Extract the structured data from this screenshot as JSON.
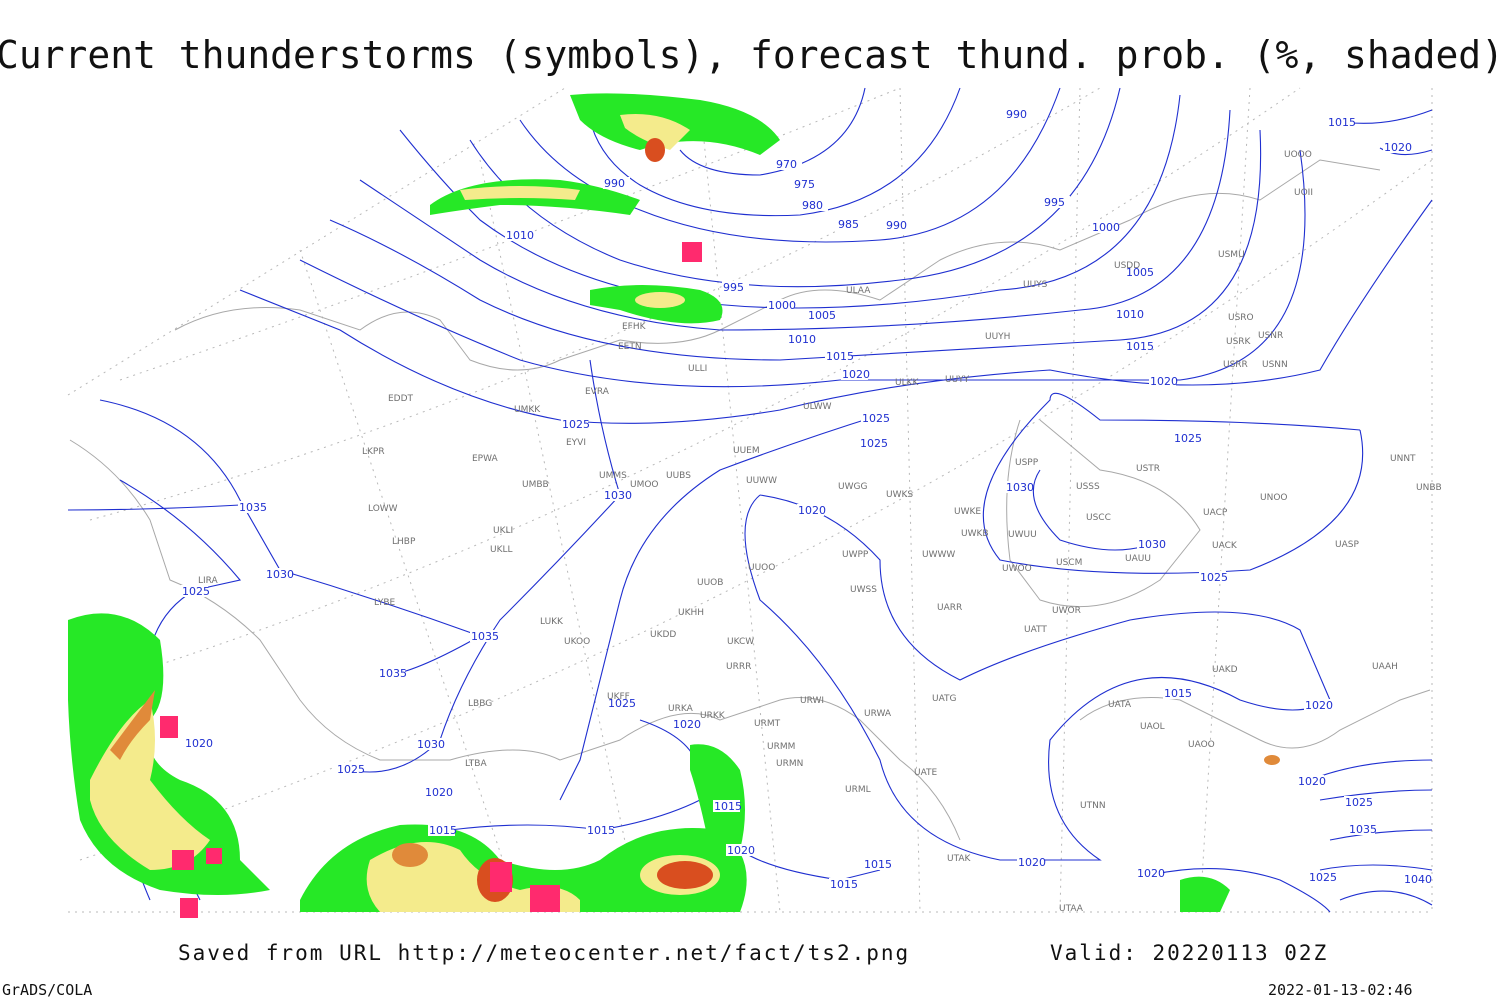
{
  "title": "Current thunderstorms (symbols), forecast thund. prob. (%, shaded)",
  "footer": {
    "source": "Saved from URL http://meteocenter.net/fact/ts2.png",
    "valid": "Valid: 20220113 02Z",
    "software": "GrADS/COLA",
    "timestamp": "2022-01-13-02:46"
  },
  "isobar_labels": [
    990,
    970,
    975,
    980,
    985,
    990,
    990,
    995,
    1000,
    1005,
    1010,
    1015,
    1020,
    1015,
    1020,
    1010,
    995,
    1000,
    1005,
    1010,
    1015,
    1020,
    1025,
    1025,
    1025,
    1025,
    1030,
    1030,
    1030,
    1020,
    1035,
    1030,
    1025,
    1035,
    1035,
    1025,
    1020,
    1020,
    1030,
    1025,
    1020,
    1015,
    1015,
    1015,
    1020,
    1015,
    1015,
    1020,
    1025,
    1015,
    1020,
    1020,
    1025,
    1035,
    1025,
    1040,
    1020
  ],
  "stations": [
    "EFHK",
    "EETN",
    "ULLI",
    "EVRA",
    "ULAA",
    "UUYS",
    "UUYH",
    "ULKK",
    "UUYY",
    "ULWW",
    "UMKK",
    "EYVI",
    "EPWA",
    "LKPR",
    "EDDT",
    "UMBB",
    "UMMS",
    "UMOO",
    "UUBS",
    "UUEM",
    "UUWW",
    "UWGG",
    "UWKS",
    "UWKE",
    "UWKB",
    "UWUU",
    "USPP",
    "USSS",
    "USTR",
    "USCC",
    "USCM",
    "UAUU",
    "UNOO",
    "UACP",
    "UACK",
    "UASP",
    "UNNT",
    "UNBB",
    "USNN",
    "USRR",
    "USRK",
    "USNR",
    "USRO",
    "USMU",
    "USDD",
    "UOII",
    "UOOO",
    "UUOO",
    "UUOB",
    "UWPP",
    "UWWW",
    "UWSS",
    "UWOO",
    "UWOR",
    "UATT",
    "UARR",
    "UAKD",
    "UAAH",
    "UATA",
    "UAOL",
    "UAOO",
    "UATG",
    "URWA",
    "URWI",
    "URMT",
    "URMM",
    "URMN",
    "URML",
    "UATE",
    "UTNN",
    "UTAK",
    "UTAA",
    "LOWW",
    "LHBP",
    "LIRA",
    "LYBE",
    "LBBG",
    "LTBA",
    "UKHH",
    "UKDD",
    "UKOO",
    "UKCW",
    "URRR",
    "UKFF",
    "URKA",
    "URKK",
    "LUKK",
    "UKLI",
    "UKLL"
  ]
}
